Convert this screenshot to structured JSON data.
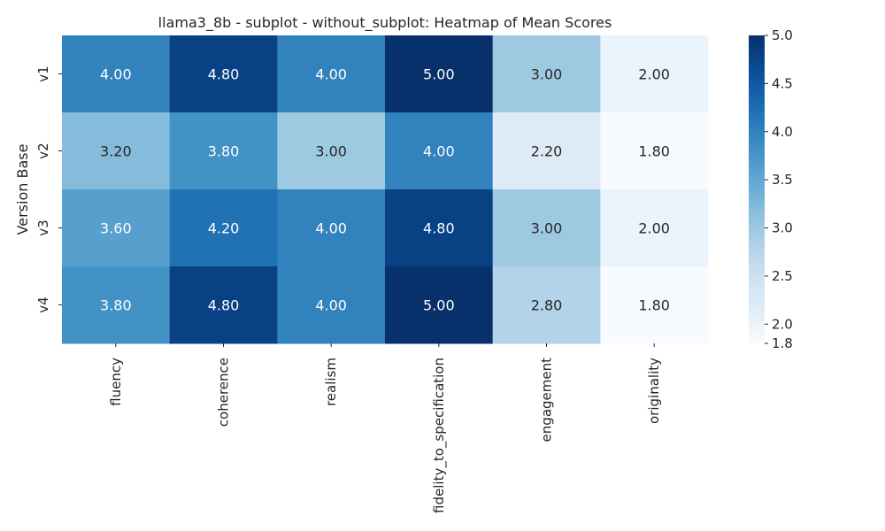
{
  "chart_data": {
    "type": "heatmap",
    "title": "llama3_8b - subplot - without_subplot: Heatmap of Mean Scores",
    "xlabel": "",
    "ylabel": "Version Base",
    "columns": [
      "fluency",
      "coherence",
      "realism",
      "fidelity_to_specification",
      "engagement",
      "originality"
    ],
    "rows": [
      "v1",
      "v2",
      "v3",
      "v4"
    ],
    "values": [
      [
        4.0,
        4.8,
        4.0,
        5.0,
        3.0,
        2.0
      ],
      [
        3.2,
        3.8,
        3.0,
        4.0,
        2.2,
        1.8
      ],
      [
        3.6,
        4.2,
        4.0,
        4.8,
        3.0,
        2.0
      ],
      [
        3.8,
        4.8,
        4.0,
        5.0,
        2.8,
        1.8
      ]
    ],
    "cell_labels": [
      [
        "4.00",
        "4.80",
        "4.00",
        "5.00",
        "3.00",
        "2.00"
      ],
      [
        "3.20",
        "3.80",
        "3.00",
        "4.00",
        "2.20",
        "1.80"
      ],
      [
        "3.60",
        "4.20",
        "4.00",
        "4.80",
        "3.00",
        "2.00"
      ],
      [
        "3.80",
        "4.80",
        "4.00",
        "5.00",
        "2.80",
        "1.80"
      ]
    ],
    "colormap": "Blues",
    "vmin": 1.8,
    "vmax": 5.0,
    "colorbar_ticks": [
      "1.8",
      "2.0",
      "2.5",
      "3.0",
      "3.5",
      "4.0",
      "4.5",
      "5.0"
    ],
    "colorbar_tick_values": [
      1.8,
      2.0,
      2.5,
      3.0,
      3.5,
      4.0,
      4.5,
      5.0
    ],
    "grid": false
  }
}
